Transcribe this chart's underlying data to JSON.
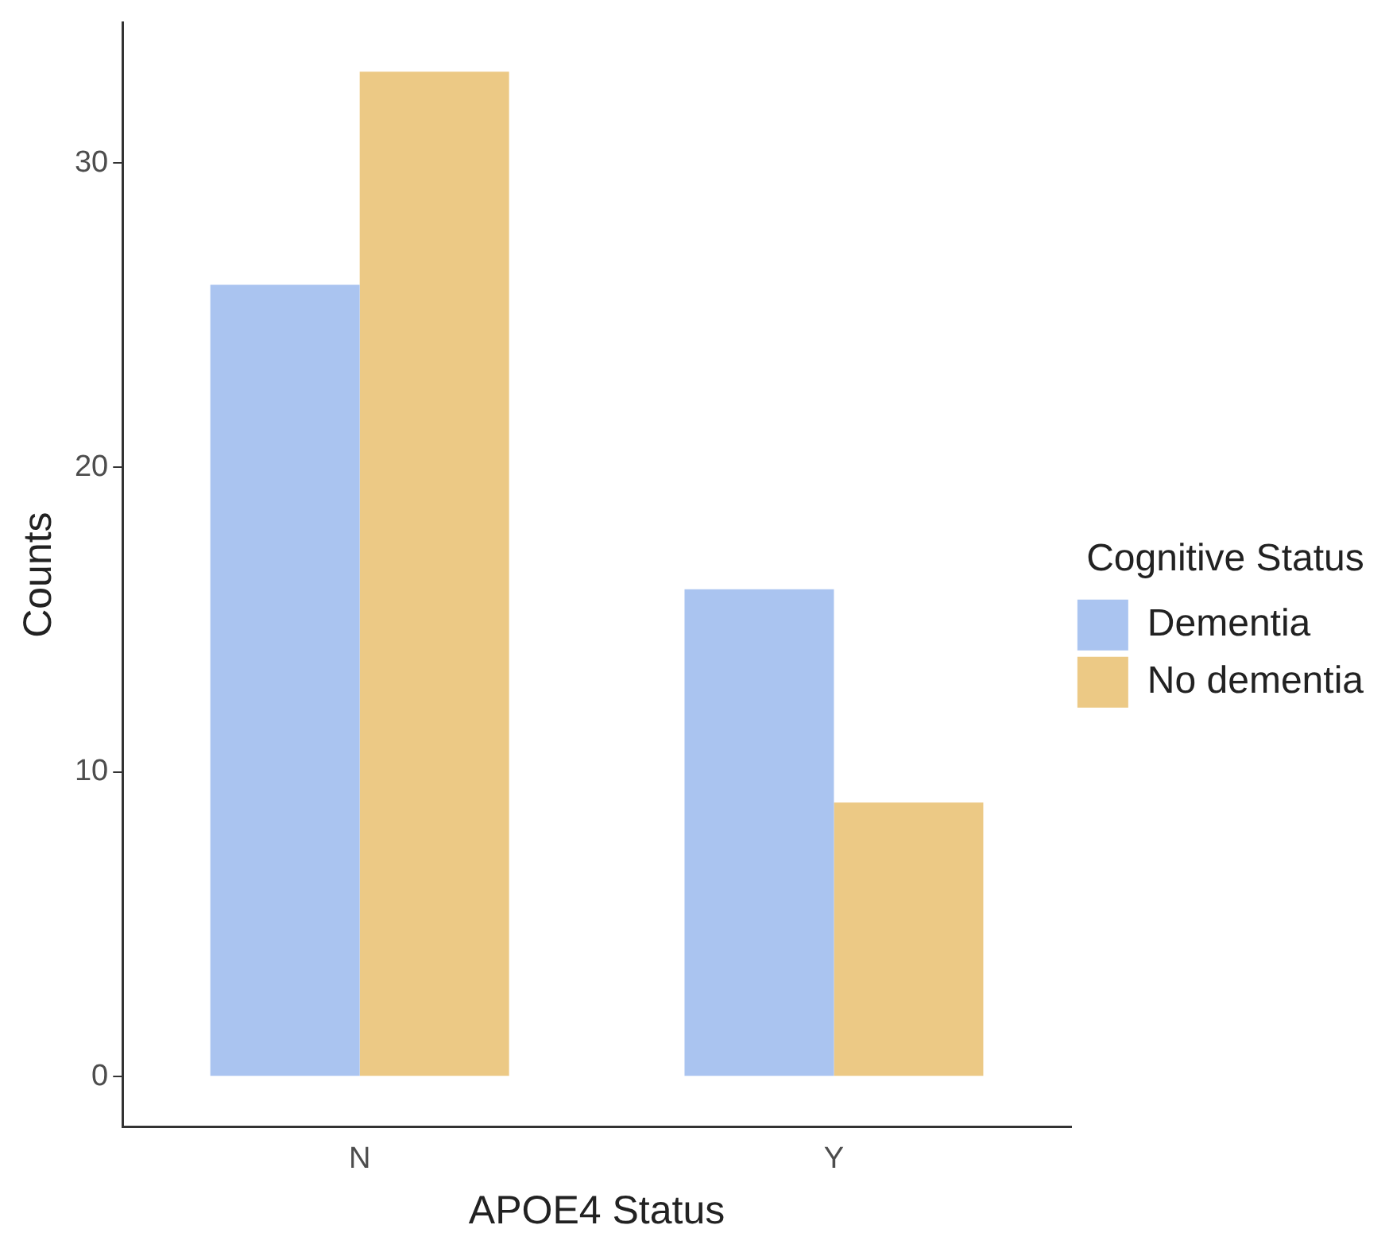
{
  "chart_data": {
    "type": "bar",
    "xlabel": "APOE4 Status",
    "ylabel": "Counts",
    "legend_title": "Cognitive Status",
    "categories": [
      "N",
      "Y"
    ],
    "series": [
      {
        "name": "Dementia",
        "color": "#aac4f0",
        "values": [
          26,
          16
        ]
      },
      {
        "name": "No dementia",
        "color": "#ecc985",
        "values": [
          33,
          9
        ]
      }
    ],
    "ylim": [
      -1.65,
      34.6
    ],
    "yticks": [
      0,
      10,
      20,
      30
    ],
    "grid": false,
    "legend": "right"
  }
}
